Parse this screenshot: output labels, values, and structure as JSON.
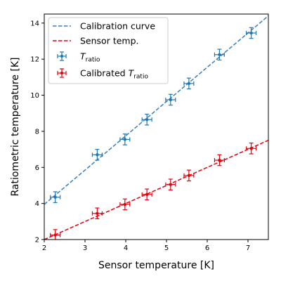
{
  "chart_data": {
    "type": "scatter",
    "xlabel": "Sensor temperature [K]",
    "ylabel": "Ratiometric temperature [K]",
    "xlim": [
      2,
      7.5
    ],
    "ylim": [
      2,
      14.5
    ],
    "xticks": [
      2,
      3,
      4,
      5,
      6,
      7
    ],
    "yticks": [
      2,
      4,
      6,
      8,
      10,
      12,
      14
    ],
    "grid": false,
    "legend_position": "top-left",
    "colors": {
      "blue": "#1f77b4",
      "red": "#e8000b",
      "curve_blue": "#3a7fbf",
      "curve_red": "#e8000b"
    },
    "lines": [
      {
        "name": "Calibration curve",
        "color": "#3a7fbf",
        "style": "dashed",
        "x": [
          2,
          7.5
        ],
        "y": [
          3.95,
          14.4
        ]
      },
      {
        "name": "Sensor temp.",
        "color": "#e8000b",
        "style": "dashed",
        "x": [
          2,
          7.5
        ],
        "y": [
          2.0,
          7.5
        ]
      }
    ],
    "series": [
      {
        "name": "T_ratio",
        "legend_main": "T",
        "legend_sub": "ratio",
        "color": "#1f77b4",
        "x": [
          2.27,
          3.3,
          3.98,
          4.52,
          5.1,
          5.55,
          6.3,
          7.08
        ],
        "y": [
          4.35,
          6.7,
          7.55,
          8.65,
          9.75,
          10.65,
          12.25,
          13.45
        ],
        "xerr": 0.12,
        "yerr": 0.3
      },
      {
        "name": "Calibrated T_ratio",
        "legend_main": "Calibrated T",
        "legend_sub": "ratio",
        "color": "#e8000b",
        "x": [
          2.27,
          3.3,
          3.98,
          4.52,
          5.1,
          5.55,
          6.3,
          7.08
        ],
        "y": [
          2.25,
          3.45,
          3.95,
          4.5,
          5.05,
          5.55,
          6.4,
          7.05
        ],
        "xerr": 0.12,
        "yerr": 0.3
      }
    ]
  }
}
